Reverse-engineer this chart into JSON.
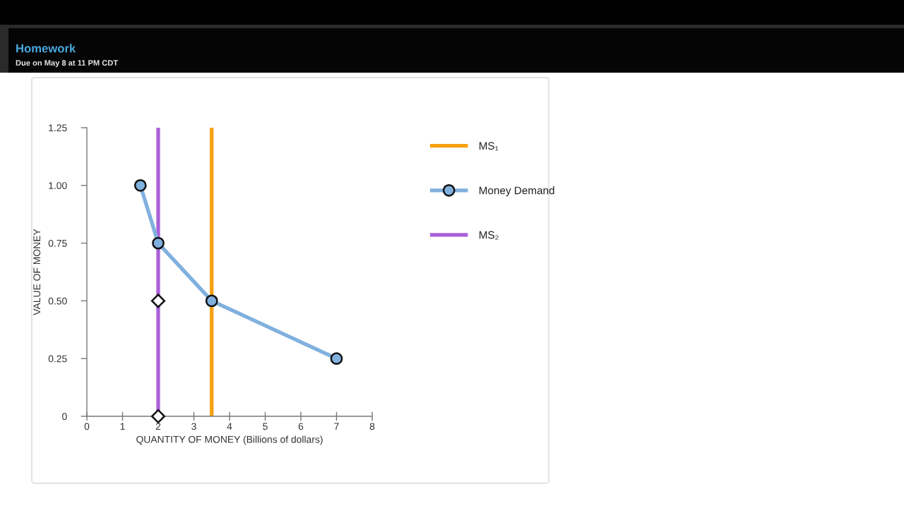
{
  "chart_data": {
    "type": "line",
    "title": "Homework",
    "subtitle": "Due on May 8 at 11 PM CDT",
    "xlabel": "QUANTITY OF MONEY (Billions of dollars)",
    "ylabel": "VALUE OF MONEY",
    "marker": "circle",
    "legend": "right",
    "grid": false,
    "series": [
      {
        "name": "MS₁",
        "color": "#f7a010",
        "marker": "none",
        "x": [
          3.5,
          3.5
        ],
        "values": [
          0,
          1.25
        ]
      },
      {
        "name": "Money Demand",
        "color": "#80b0de",
        "x": [
          1.5,
          2,
          3.5,
          7
        ],
        "values": [
          1,
          0.75,
          0.5,
          0.25
        ]
      },
      {
        "name": "MS₂",
        "color": "#aa60d8",
        "marker": "none",
        "x": [
          2,
          2
        ],
        "values": [
          0,
          1.25
        ]
      },
      {
        "type": "scatter",
        "color": "#ffffff",
        "marker": "diamond",
        "x": [
          2,
          2
        ],
        "values": [
          0.5,
          0
        ]
      }
    ],
    "xlim": [
      0,
      8
    ],
    "xticks": [
      0,
      1,
      2,
      3,
      4,
      5,
      6,
      7,
      8
    ],
    "ylim": [
      0,
      1.25
    ],
    "yticks": [
      0,
      0.25,
      {
        "value": 0.5,
        "label": "0.50"
      },
      0.75,
      {
        "value": 1,
        "label": "1.00"
      },
      1.25
    ]
  }
}
